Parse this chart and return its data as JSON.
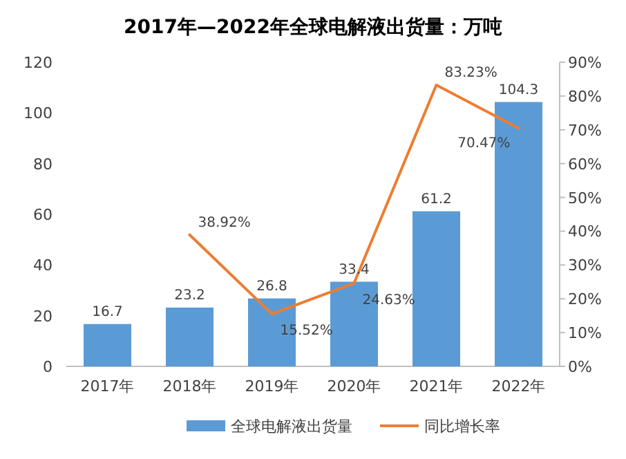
{
  "chart_data": {
    "type": "bar",
    "title": "2017年—2022年全球电解液出货量：万吨",
    "categories": [
      "2017年",
      "2018年",
      "2019年",
      "2020年",
      "2021年",
      "2022年"
    ],
    "series": [
      {
        "name": "全球电解液出货量",
        "color": "#5b9bd5",
        "values": [
          16.7,
          23.2,
          26.8,
          33.4,
          61.2,
          104.3
        ],
        "value_labels": [
          "16.7",
          "23.2",
          "26.8",
          "33.4",
          "61.2",
          "104.3"
        ]
      },
      {
        "name": "同比增长率",
        "type": "line",
        "axis": "y2",
        "color": "#ed7d31",
        "values": [
          null,
          38.92,
          15.52,
          24.63,
          83.23,
          70.47
        ],
        "value_labels": [
          null,
          "38.92%",
          "15.52%",
          "24.63%",
          "83.23%",
          "70.47%"
        ]
      }
    ],
    "ylim": [
      0,
      120
    ],
    "yticks": [
      0,
      20,
      40,
      60,
      80,
      100,
      120
    ],
    "y2lim": [
      0,
      90
    ],
    "y2ticks": [
      {
        "value": 0,
        "label": "0%"
      },
      {
        "value": 10,
        "label": "10%"
      },
      {
        "value": 20,
        "label": "20%"
      },
      {
        "value": 30,
        "label": "30%"
      },
      {
        "value": 40,
        "label": "40%"
      },
      {
        "value": 50,
        "label": "50%"
      },
      {
        "value": 60,
        "label": "60%"
      },
      {
        "value": 70,
        "label": "70%"
      },
      {
        "value": 80,
        "label": "80%"
      },
      {
        "value": 90,
        "label": "90%"
      }
    ],
    "legend": "bottom"
  }
}
